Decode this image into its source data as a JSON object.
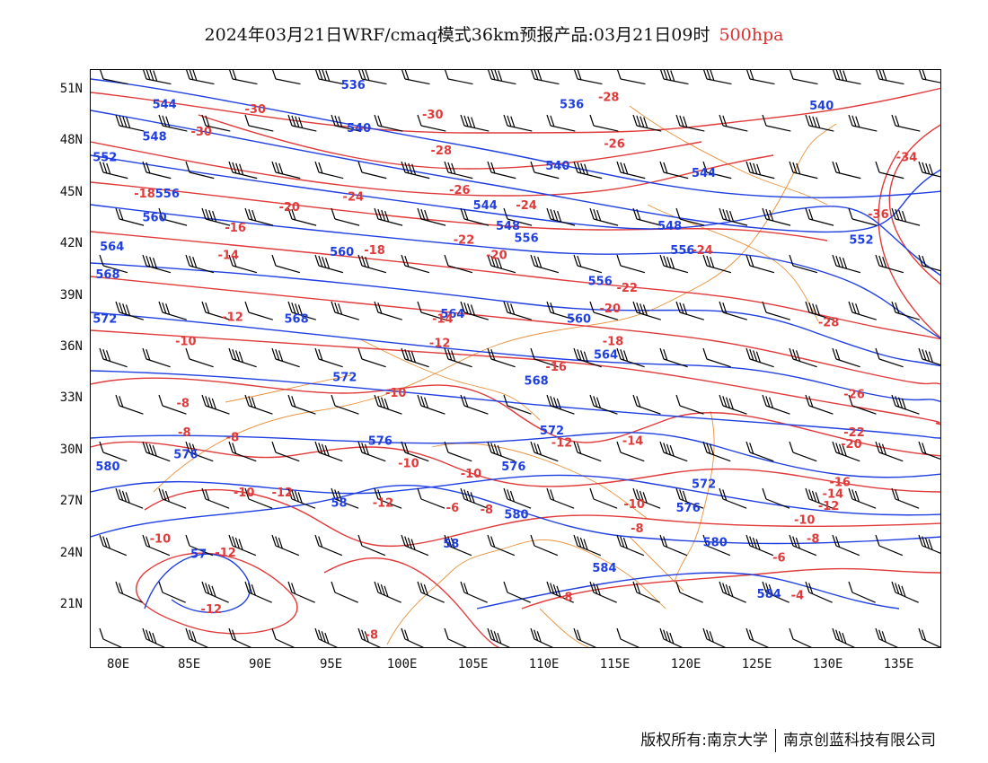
{
  "title": {
    "text": "2024年03月21日WRF/cmaq模式36km预报产品:03月21日09时",
    "level": "500hpa"
  },
  "copyright": {
    "owner_label": "版权所有:",
    "org1": "南京大学",
    "org2": "南京创蓝科技有限公司"
  },
  "axes": {
    "lat_labels": [
      "51N",
      "48N",
      "45N",
      "42N",
      "39N",
      "36N",
      "33N",
      "30N",
      "27N",
      "24N",
      "21N"
    ],
    "lon_labels": [
      "80E",
      "85E",
      "90E",
      "95E",
      "100E",
      "105E",
      "110E",
      "115E",
      "120E",
      "125E",
      "130E",
      "135E"
    ],
    "lat_values": [
      51,
      48,
      45,
      42,
      39,
      36,
      33,
      30,
      27,
      24,
      21
    ],
    "lon_values": [
      80,
      85,
      90,
      95,
      100,
      105,
      110,
      115,
      120,
      125,
      130,
      135
    ],
    "lon_range": [
      78,
      138
    ],
    "lat_range": [
      18.5,
      52.2
    ]
  },
  "colors": {
    "height_contour": "#1f3fe0",
    "temperature_contour": "#e03a3a",
    "boundary": "#e8913a",
    "wind_barb": "#000000"
  },
  "height_labels": [
    {
      "text": "536",
      "lon": 96.5,
      "lat": 51.3
    },
    {
      "text": "544",
      "lon": 83.2,
      "lat": 50.2
    },
    {
      "text": "548",
      "lon": 82.5,
      "lat": 48.3
    },
    {
      "text": "552",
      "lon": 79.0,
      "lat": 47.1
    },
    {
      "text": "556",
      "lon": 83.4,
      "lat": 45.0
    },
    {
      "text": "560",
      "lon": 82.5,
      "lat": 43.6
    },
    {
      "text": "564",
      "lon": 79.5,
      "lat": 41.9
    },
    {
      "text": "568",
      "lon": 79.2,
      "lat": 40.3
    },
    {
      "text": "572",
      "lon": 79.0,
      "lat": 37.7
    },
    {
      "text": "540",
      "lon": 96.9,
      "lat": 48.8
    },
    {
      "text": "536",
      "lon": 111.9,
      "lat": 50.2
    },
    {
      "text": "540",
      "lon": 110.9,
      "lat": 46.6
    },
    {
      "text": "540",
      "lon": 129.5,
      "lat": 50.1
    },
    {
      "text": "544",
      "lon": 105.8,
      "lat": 44.3
    },
    {
      "text": "548",
      "lon": 107.4,
      "lat": 43.1
    },
    {
      "text": "544",
      "lon": 121.2,
      "lat": 46.2
    },
    {
      "text": "548",
      "lon": 118.8,
      "lat": 43.1
    },
    {
      "text": "552",
      "lon": 132.3,
      "lat": 42.3
    },
    {
      "text": "560",
      "lon": 95.7,
      "lat": 41.6
    },
    {
      "text": "556",
      "lon": 108.7,
      "lat": 42.4
    },
    {
      "text": "556",
      "lon": 113.9,
      "lat": 39.9
    },
    {
      "text": "556",
      "lon": 119.7,
      "lat": 41.7
    },
    {
      "text": "564",
      "lon": 103.5,
      "lat": 38.0
    },
    {
      "text": "568",
      "lon": 92.5,
      "lat": 37.7
    },
    {
      "text": "560",
      "lon": 112.4,
      "lat": 37.7
    },
    {
      "text": "564",
      "lon": 114.3,
      "lat": 35.6
    },
    {
      "text": "568",
      "lon": 109.4,
      "lat": 34.1
    },
    {
      "text": "572",
      "lon": 95.9,
      "lat": 34.3
    },
    {
      "text": "572",
      "lon": 110.5,
      "lat": 31.2
    },
    {
      "text": "576",
      "lon": 98.4,
      "lat": 30.6
    },
    {
      "text": "576",
      "lon": 84.7,
      "lat": 29.8
    },
    {
      "text": "576",
      "lon": 107.8,
      "lat": 29.1
    },
    {
      "text": "572",
      "lon": 121.2,
      "lat": 28.1
    },
    {
      "text": "576",
      "lon": 120.1,
      "lat": 26.7
    },
    {
      "text": "580",
      "lon": 79.2,
      "lat": 29.1
    },
    {
      "text": "58",
      "lon": 95.5,
      "lat": 27.0
    },
    {
      "text": "580",
      "lon": 108.0,
      "lat": 26.3
    },
    {
      "text": "580",
      "lon": 122.0,
      "lat": 24.7
    },
    {
      "text": "58",
      "lon": 103.4,
      "lat": 24.6
    },
    {
      "text": "584",
      "lon": 114.2,
      "lat": 23.2
    },
    {
      "text": "584",
      "lon": 125.8,
      "lat": 21.7
    },
    {
      "text": "57",
      "lon": 85.6,
      "lat": 24.0
    }
  ],
  "temperature_labels": [
    {
      "text": "-30",
      "lon": 89.6,
      "lat": 49.9
    },
    {
      "text": "-30",
      "lon": 85.8,
      "lat": 48.6
    },
    {
      "text": "-30",
      "lon": 102.1,
      "lat": 49.6
    },
    {
      "text": "-28",
      "lon": 114.5,
      "lat": 50.6
    },
    {
      "text": "-28",
      "lon": 102.7,
      "lat": 47.5
    },
    {
      "text": "-26",
      "lon": 114.9,
      "lat": 47.9
    },
    {
      "text": "-34",
      "lon": 135.5,
      "lat": 47.1
    },
    {
      "text": "-36",
      "lon": 133.5,
      "lat": 43.8
    },
    {
      "text": "-18",
      "lon": 81.8,
      "lat": 45.0
    },
    {
      "text": "-20",
      "lon": 92.0,
      "lat": 44.2
    },
    {
      "text": "-24",
      "lon": 96.5,
      "lat": 44.8
    },
    {
      "text": "-26",
      "lon": 104.0,
      "lat": 45.2
    },
    {
      "text": "-24",
      "lon": 108.7,
      "lat": 44.3
    },
    {
      "text": "-16",
      "lon": 88.2,
      "lat": 43.0
    },
    {
      "text": "-22",
      "lon": 104.3,
      "lat": 42.3
    },
    {
      "text": "-20",
      "lon": 106.6,
      "lat": 41.4
    },
    {
      "text": "-18",
      "lon": 98.0,
      "lat": 41.7
    },
    {
      "text": "-24",
      "lon": 121.1,
      "lat": 41.7
    },
    {
      "text": "-14",
      "lon": 87.7,
      "lat": 41.4
    },
    {
      "text": "-22",
      "lon": 115.8,
      "lat": 39.5
    },
    {
      "text": "-20",
      "lon": 114.6,
      "lat": 38.3
    },
    {
      "text": "-28",
      "lon": 130.0,
      "lat": 37.5
    },
    {
      "text": "-12",
      "lon": 88.0,
      "lat": 37.8
    },
    {
      "text": "-14",
      "lon": 102.8,
      "lat": 37.7
    },
    {
      "text": "-10",
      "lon": 84.7,
      "lat": 36.4
    },
    {
      "text": "-12",
      "lon": 102.6,
      "lat": 36.3
    },
    {
      "text": "-18",
      "lon": 114.8,
      "lat": 36.4
    },
    {
      "text": "-16",
      "lon": 110.8,
      "lat": 34.9
    },
    {
      "text": "-10",
      "lon": 99.5,
      "lat": 33.4
    },
    {
      "text": "-26",
      "lon": 131.8,
      "lat": 33.3
    },
    {
      "text": "-8",
      "lon": 84.5,
      "lat": 32.8
    },
    {
      "text": "-8",
      "lon": 84.6,
      "lat": 31.1
    },
    {
      "text": "-8",
      "lon": 88.0,
      "lat": 30.8
    },
    {
      "text": "-22",
      "lon": 131.8,
      "lat": 31.1
    },
    {
      "text": "-20",
      "lon": 131.6,
      "lat": 30.4
    },
    {
      "text": "-12",
      "lon": 111.2,
      "lat": 30.5
    },
    {
      "text": "-14",
      "lon": 116.2,
      "lat": 30.6
    },
    {
      "text": "-10",
      "lon": 100.4,
      "lat": 29.3
    },
    {
      "text": "-10",
      "lon": 104.8,
      "lat": 28.7
    },
    {
      "text": "-16",
      "lon": 130.8,
      "lat": 28.2
    },
    {
      "text": "-14",
      "lon": 130.3,
      "lat": 27.5
    },
    {
      "text": "-10",
      "lon": 88.8,
      "lat": 27.6
    },
    {
      "text": "-12",
      "lon": 91.5,
      "lat": 27.6
    },
    {
      "text": "-12",
      "lon": 98.6,
      "lat": 27.0
    },
    {
      "text": "-12",
      "lon": 130.0,
      "lat": 26.8
    },
    {
      "text": "-6",
      "lon": 103.5,
      "lat": 26.7
    },
    {
      "text": "-8",
      "lon": 105.9,
      "lat": 26.6
    },
    {
      "text": "-10",
      "lon": 116.3,
      "lat": 26.9
    },
    {
      "text": "-10",
      "lon": 128.3,
      "lat": 26.0
    },
    {
      "text": "-8",
      "lon": 116.5,
      "lat": 25.5
    },
    {
      "text": "-8",
      "lon": 128.9,
      "lat": 24.9
    },
    {
      "text": "-10",
      "lon": 82.9,
      "lat": 24.9
    },
    {
      "text": "-12",
      "lon": 87.5,
      "lat": 24.1
    },
    {
      "text": "-6",
      "lon": 126.5,
      "lat": 23.8
    },
    {
      "text": "-4",
      "lon": 127.8,
      "lat": 21.6
    },
    {
      "text": "-8",
      "lon": 111.5,
      "lat": 21.5
    },
    {
      "text": "-12",
      "lon": 86.5,
      "lat": 20.8
    },
    {
      "text": "-8",
      "lon": 97.8,
      "lat": 19.3
    }
  ]
}
